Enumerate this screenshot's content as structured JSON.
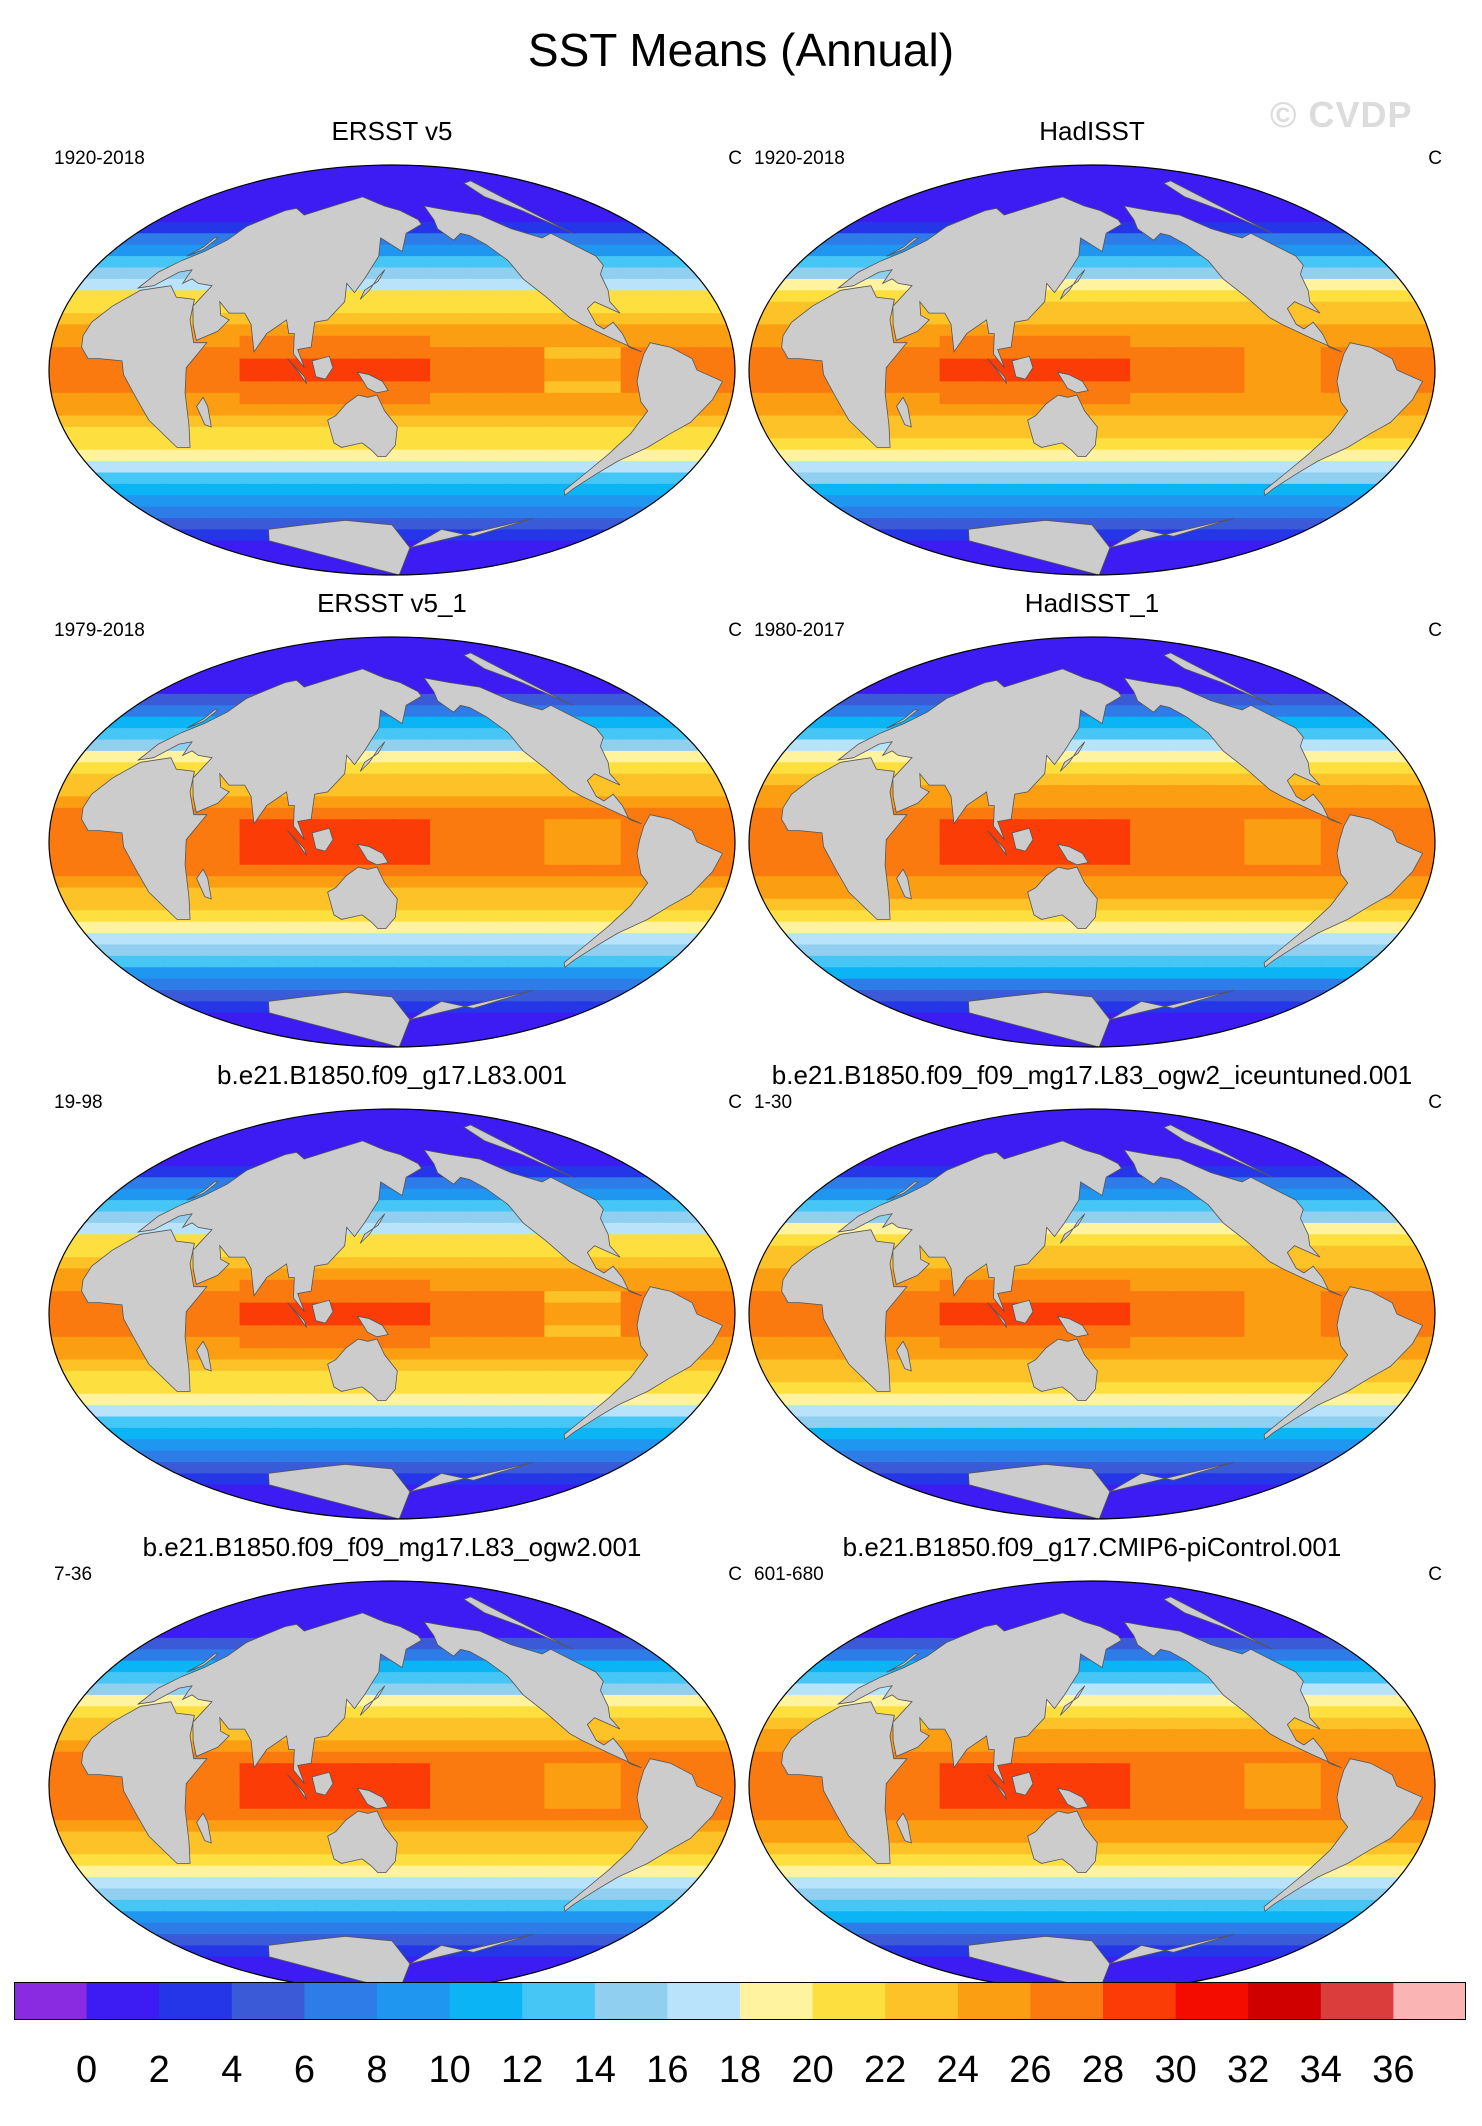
{
  "title": "SST Means (Annual)",
  "watermark": "© CVDP",
  "colormap": {
    "colors": [
      "#8a2be2",
      "#3c1cf2",
      "#2436e8",
      "#3a5ad8",
      "#2e7ce8",
      "#1f96f0",
      "#0ab4f5",
      "#45c6f5",
      "#90cff0",
      "#b9e3fa",
      "#fff3a0",
      "#fde040",
      "#fcc228",
      "#fc9e12",
      "#fa7a10",
      "#fc3c06",
      "#f50c00",
      "#d00000",
      "#db3c3c",
      "#fab4b4"
    ],
    "tick_labels": [
      "0",
      "2",
      "4",
      "6",
      "8",
      "10",
      "12",
      "14",
      "16",
      "18",
      "20",
      "22",
      "24",
      "26",
      "28",
      "30",
      "32",
      "34",
      "36"
    ],
    "land_color": "#cccccc",
    "ocean_background": "#ffffff"
  },
  "panels": [
    {
      "title": "ERSST v5",
      "period": "1920-2018",
      "units": "C"
    },
    {
      "title": "HadISST",
      "period": "1920-2018",
      "units": "C"
    },
    {
      "title": "ERSST v5_1",
      "period": "1979-2018",
      "units": "C"
    },
    {
      "title": "HadISST_1",
      "period": "1980-2017",
      "units": "C"
    },
    {
      "title": "b.e21.B1850.f09_g17.L83.001",
      "period": "19-98",
      "units": "C"
    },
    {
      "title": "b.e21.B1850.f09_f09_mg17.L83_ogw2_iceuntuned.001",
      "period": "1-30",
      "units": "C"
    },
    {
      "title": "b.e21.B1850.f09_f09_mg17.L83_ogw2.001",
      "period": "7-36",
      "units": "C"
    },
    {
      "title": "b.e21.B1850.f09_g17.CMIP6-piControl.001",
      "period": "601-680",
      "units": "C"
    }
  ]
}
